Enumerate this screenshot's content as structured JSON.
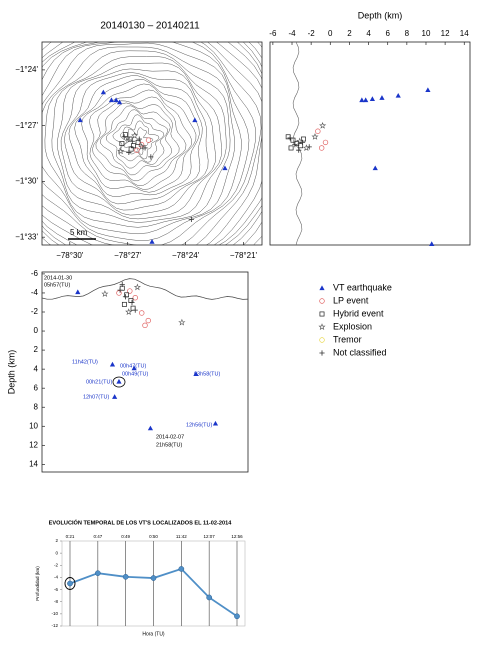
{
  "chart_data": [
    {
      "type": "scatter",
      "title": "20140130 – 20140211",
      "scale_label": "5 km",
      "xlim": [
        -78.524,
        -78.334
      ],
      "ylim": [
        -1.557,
        -1.375
      ],
      "xticks": [
        {
          "value": -78.5,
          "label": "−78°30'"
        },
        {
          "value": -78.45,
          "label": "−78°27'"
        },
        {
          "value": -78.4,
          "label": "−78°24'"
        },
        {
          "value": -78.35,
          "label": "−78°21'"
        }
      ],
      "yticks": [
        {
          "value": -1.4,
          "label": "−1°24'"
        },
        {
          "value": -1.45,
          "label": "−1°27'"
        },
        {
          "value": -1.5,
          "label": "−1°30'"
        },
        {
          "value": -1.55,
          "label": "−1°33'"
        }
      ],
      "series": [
        {
          "marker": "triangle",
          "color": "#1a35c9",
          "x": [
            -78.491,
            -78.471,
            -78.464,
            -78.46,
            -78.457,
            -78.392,
            -78.366,
            -78.429
          ],
          "y": [
            -1.445,
            -1.42,
            -1.427,
            -1.427,
            -1.429,
            -1.445,
            -1.488,
            -1.554
          ]
        },
        {
          "marker": "circle",
          "color": "#e06060",
          "x": [
            -78.438,
            -78.432,
            -78.442
          ],
          "y": [
            -1.467,
            -1.463,
            -1.472
          ]
        },
        {
          "marker": "square",
          "color": "#222222",
          "x": [
            -78.452,
            -78.448,
            -78.445,
            -78.441,
            -78.447,
            -78.455
          ],
          "y": [
            -1.458,
            -1.462,
            -1.468,
            -1.465,
            -1.471,
            -1.466
          ]
        },
        {
          "marker": "star",
          "color": "#555555",
          "x": [
            -78.45,
            -78.444,
            -78.438,
            -78.456
          ],
          "y": [
            -1.461,
            -1.459,
            -1.469,
            -1.473
          ]
        },
        {
          "marker": "circle",
          "color": "#e8d84a",
          "x": [],
          "y": []
        },
        {
          "marker": "plus",
          "color": "#333333",
          "x": [
            -78.453,
            -78.446,
            -78.44,
            -78.435,
            -78.449,
            -78.43,
            -78.395
          ],
          "y": [
            -1.46,
            -1.464,
            -1.462,
            -1.47,
            -1.474,
            -1.478,
            -1.534
          ]
        }
      ]
    },
    {
      "type": "scatter",
      "xlabel": "Depth (km)",
      "xlim": [
        -6.3,
        14.6
      ],
      "ylim": [
        -1.557,
        -1.375
      ],
      "xticks": [
        -6,
        -4,
        -2,
        0,
        2,
        4,
        6,
        8,
        10,
        12,
        14
      ],
      "series": [
        {
          "marker": "triangle",
          "color": "#1a35c9",
          "x": [
            3.3,
            3.7,
            4.4,
            5.4,
            7.1,
            10.2,
            4.7,
            10.6
          ],
          "y": [
            -1.427,
            -1.427,
            -1.426,
            -1.425,
            -1.423,
            -1.418,
            -1.488,
            -1.556
          ]
        },
        {
          "marker": "circle",
          "color": "#e06060",
          "x": [
            -1.3,
            -0.9,
            -0.5
          ],
          "y": [
            -1.455,
            -1.47,
            -1.465
          ]
        },
        {
          "marker": "square",
          "color": "#222222",
          "x": [
            -4.4,
            -3.9,
            -3.5,
            -3.1,
            -2.8,
            -4.1
          ],
          "y": [
            -1.46,
            -1.463,
            -1.466,
            -1.468,
            -1.462,
            -1.47
          ]
        },
        {
          "marker": "star",
          "color": "#555555",
          "x": [
            -3.2,
            -2.5,
            -1.6,
            -0.8
          ],
          "y": [
            -1.464,
            -1.47,
            -1.46,
            -1.45
          ]
        },
        {
          "marker": "circle",
          "color": "#e8d84a",
          "x": [],
          "y": []
        },
        {
          "marker": "plus",
          "color": "#333333",
          "x": [
            -4.2,
            -3.7,
            -3.3,
            -2.9,
            -2.2
          ],
          "y": [
            -1.461,
            -1.467,
            -1.472,
            -1.465,
            -1.469
          ]
        }
      ]
    },
    {
      "type": "scatter",
      "ylabel": "Depth (km)",
      "y_inverted": true,
      "xlim": [
        -78.524,
        -78.334
      ],
      "ylim": [
        -6.2,
        14.8
      ],
      "yticks": [
        -6,
        -4,
        -2,
        0,
        2,
        4,
        6,
        8,
        10,
        12,
        14
      ],
      "annotations": [
        "2014-01-30",
        "05h57(TU)",
        "11h42(TU)",
        "00h47(TU)",
        "00h49(TU)",
        "00h21(TU)",
        "12h07(TU)",
        "03h58(TU)",
        "12h56(TU)",
        "2014-02-07",
        "21h58(TU)"
      ],
      "series": [
        {
          "name": "VT earthquake",
          "marker": "triangle",
          "color": "#1a35c9",
          "x": [
            -78.491,
            -78.459,
            -78.439,
            -78.453,
            -78.457,
            -78.382,
            -78.364,
            -78.424
          ],
          "y": [
            -4.1,
            3.5,
            3.9,
            5.3,
            6.9,
            4.5,
            9.7,
            10.2
          ]
        },
        {
          "name": "LP event",
          "marker": "circle",
          "color": "#e06060",
          "x": [
            -78.453,
            -78.443,
            -78.432,
            -78.426,
            -78.429,
            -78.438
          ],
          "y": [
            -4,
            -4.2,
            -1.9,
            -1.1,
            -0.6,
            -3.5
          ]
        },
        {
          "name": "Hybrid event",
          "marker": "square",
          "color": "#222222",
          "x": [
            -78.45,
            -78.446,
            -78.442,
            -78.448,
            -78.44
          ],
          "y": [
            -4.5,
            -3.8,
            -3.2,
            -2.8,
            -2.4
          ]
        },
        {
          "name": "Explosion",
          "marker": "star",
          "color": "#555555",
          "x": [
            -78.466,
            -78.436,
            -78.395,
            -78.444
          ],
          "y": [
            -3.9,
            -4.6,
            -0.9,
            -2
          ]
        },
        {
          "name": "Tremor",
          "marker": "circle",
          "color": "#e8d84a",
          "x": [],
          "y": []
        },
        {
          "name": "Not classified",
          "marker": "plus",
          "color": "#333333",
          "x": [
            -78.452,
            -78.447,
            -78.441,
            -78.438,
            -78.45
          ],
          "y": [
            -4.3,
            -3.6,
            -3,
            -2.2,
            -4.9
          ]
        }
      ]
    },
    {
      "type": "line",
      "title": "EVOLUCIÓN TEMPORAL DE LOS VT'S LOCALIZADOS EL 11-02-2014",
      "xlabel": "Hora (TU)",
      "ylabel": "Profundidad (km)",
      "categories": [
        "0:21",
        "0:47",
        "0:49",
        "0:50",
        "11:42",
        "12:07",
        "12:56"
      ],
      "values": [
        -5,
        -3.3,
        -3.9,
        -4.1,
        -2.6,
        -7.3,
        -10.4
      ],
      "color": "#4f8fc7",
      "ylim": [
        -12,
        2
      ],
      "yticks": [
        2,
        0,
        -2,
        -4,
        -6,
        -8,
        -10,
        -12
      ],
      "grid": true
    }
  ]
}
